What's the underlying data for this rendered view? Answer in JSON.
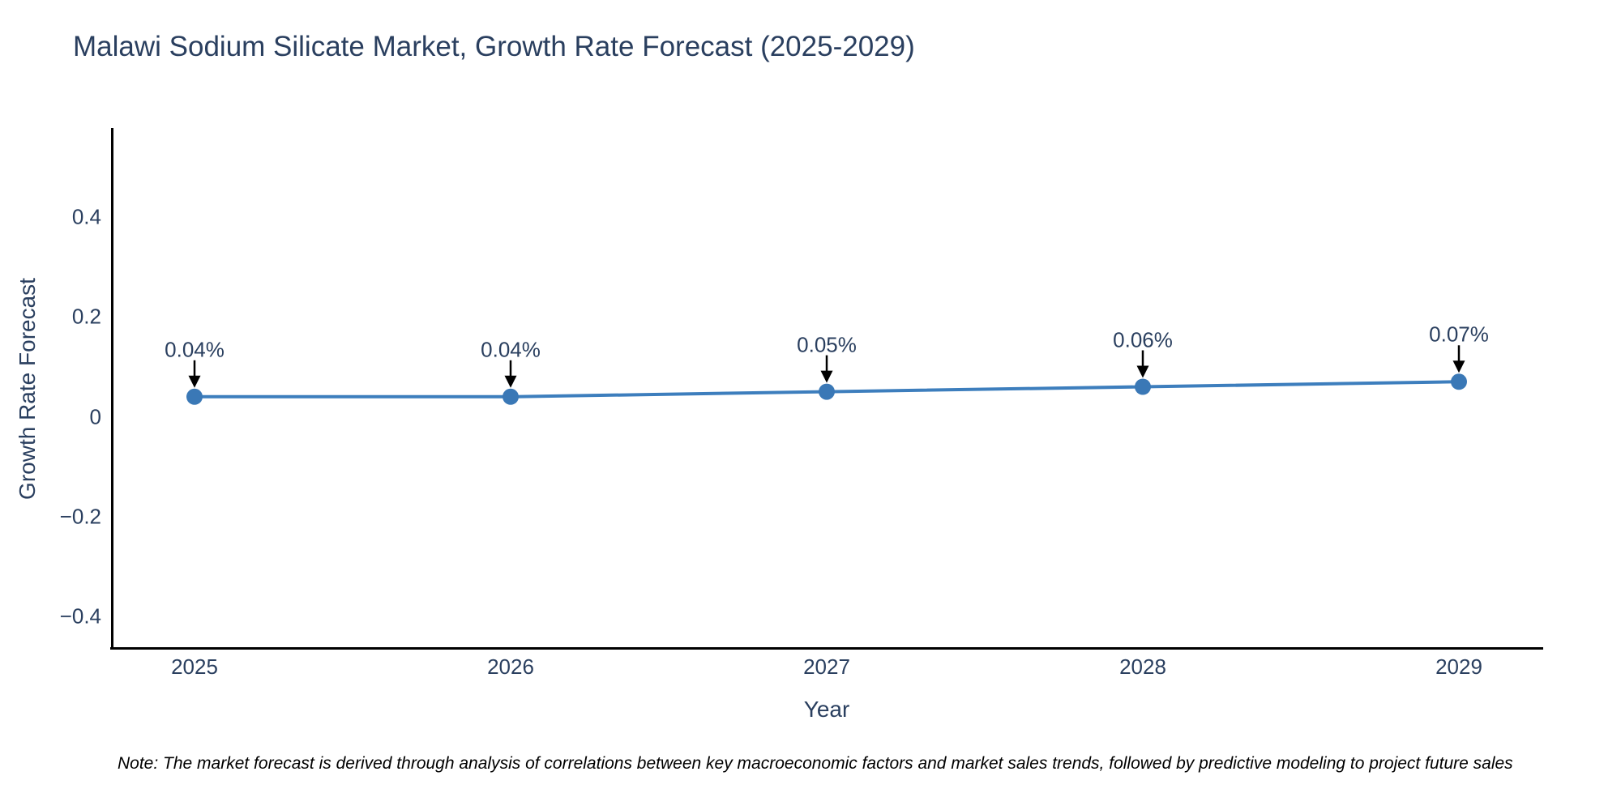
{
  "chart_data": {
    "type": "line",
    "title": "Malawi Sodium Silicate Market, Growth Rate Forecast (2025-2029)",
    "xlabel": "Year",
    "ylabel": "Growth Rate Forecast",
    "categories": [
      "2025",
      "2026",
      "2027",
      "2028",
      "2029"
    ],
    "series": [
      {
        "name": "Growth Rate Forecast",
        "values": [
          0.04,
          0.04,
          0.05,
          0.06,
          0.07
        ],
        "point_labels": [
          "0.04%",
          "0.04%",
          "0.05%",
          "0.06%",
          "0.07%"
        ]
      }
    ],
    "yticks": [
      0.4,
      0.2,
      0,
      -0.2,
      -0.4
    ],
    "ytick_labels": [
      "0.4",
      "0.2",
      "0",
      "−0.2",
      "−0.4"
    ],
    "ylim": [
      -0.463,
      0.578
    ],
    "grid": false,
    "legend_position": "none",
    "annotation_style": "value labels above points with black down arrows"
  },
  "note_text": "Note: The market forecast is derived through analysis of correlations between key macroeconomic factors and market sales trends, followed by predictive modeling to project future sales",
  "colors": {
    "title_text": "#2a3f5f",
    "tick_text": "#2a3f5f",
    "axis_spine": "#000000",
    "line": "#3d7ebd",
    "marker": "#3a78b6",
    "annotation_arrow": "#000000",
    "note_text": "#000000",
    "background": "#ffffff"
  }
}
